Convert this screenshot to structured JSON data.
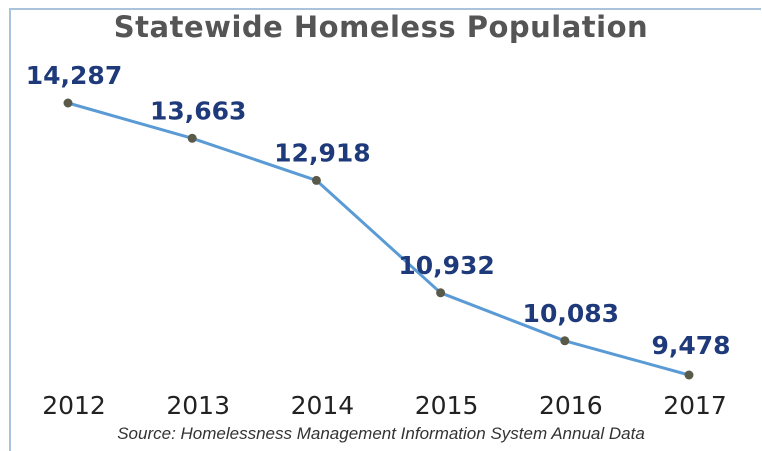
{
  "chart_data": {
    "type": "line",
    "title": "Statewide Homeless Population",
    "categories": [
      "2012",
      "2013",
      "2014",
      "2015",
      "2016",
      "2017"
    ],
    "series": [
      {
        "values": [
          14287,
          13663,
          12918,
          10932,
          10083,
          9478
        ],
        "data_labels": [
          "14,287",
          "13,663",
          "12,918",
          "10,932",
          "10,083",
          "9,478"
        ]
      }
    ],
    "xlabel": "",
    "ylabel": "",
    "grid": false,
    "source": "Source: Homelessness Management Information System Annual Data"
  },
  "colors": {
    "line": "#5b9bd5",
    "marker": "#5a5a4a",
    "data_label": "#1f3a7a",
    "title": "#555555",
    "frame": "#a9c3dd"
  }
}
